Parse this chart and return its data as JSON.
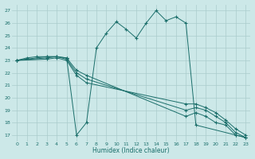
{
  "xlabel": "Humidex (Indice chaleur)",
  "bg_color": "#cce8e8",
  "grid_color": "#aacccc",
  "line_color": "#1a6e6a",
  "xlim": [
    -0.5,
    23.5
  ],
  "ylim": [
    16.5,
    27.5
  ],
  "xticks": [
    0,
    1,
    2,
    3,
    4,
    5,
    6,
    7,
    8,
    9,
    10,
    11,
    12,
    13,
    14,
    15,
    16,
    17,
    18,
    19,
    20,
    21,
    22,
    23
  ],
  "yticks": [
    17,
    18,
    19,
    20,
    21,
    22,
    23,
    24,
    25,
    26,
    27
  ],
  "line1_x": [
    0,
    1,
    2,
    3,
    4,
    5,
    6,
    7,
    8,
    9,
    10,
    11,
    12,
    13,
    14,
    15,
    16,
    17,
    18,
    22,
    23
  ],
  "line1_y": [
    23.0,
    23.2,
    23.3,
    23.3,
    23.3,
    23.2,
    17.0,
    18.0,
    24.0,
    25.2,
    26.1,
    25.5,
    24.8,
    26.0,
    27.0,
    26.2,
    26.5,
    26.0,
    17.8,
    17.0,
    16.8
  ],
  "line2_x": [
    0,
    3,
    4,
    5,
    6,
    7,
    17,
    18,
    19,
    20,
    21,
    22,
    23
  ],
  "line2_y": [
    23.0,
    23.3,
    23.3,
    23.2,
    22.2,
    21.8,
    18.5,
    18.8,
    18.5,
    18.0,
    17.8,
    17.0,
    16.8
  ],
  "line3_x": [
    0,
    3,
    4,
    5,
    6,
    7,
    17,
    18,
    19,
    20,
    21,
    22,
    23
  ],
  "line3_y": [
    23.0,
    23.2,
    23.3,
    23.1,
    22.0,
    21.5,
    19.0,
    19.2,
    19.0,
    18.5,
    18.0,
    17.2,
    16.8
  ],
  "line4_x": [
    0,
    3,
    4,
    5,
    6,
    7,
    17,
    18,
    19,
    20,
    21,
    22,
    23
  ],
  "line4_y": [
    23.0,
    23.1,
    23.2,
    23.0,
    21.8,
    21.2,
    19.5,
    19.5,
    19.2,
    18.8,
    18.2,
    17.5,
    17.0
  ]
}
